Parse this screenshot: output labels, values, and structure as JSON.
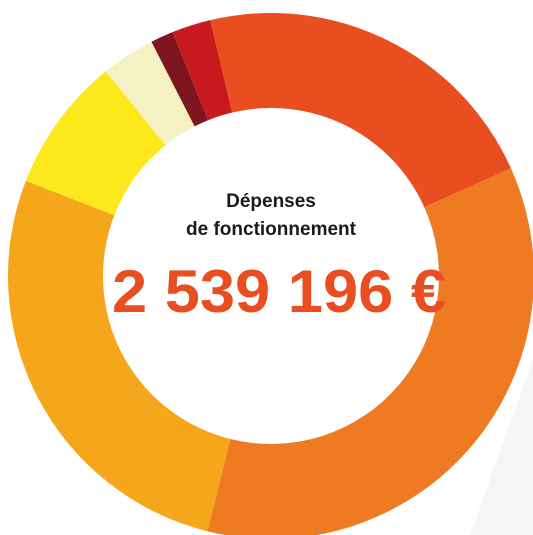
{
  "chart_data": {
    "type": "donut",
    "title_lines": [
      "Dépenses",
      "de fonctionnement"
    ],
    "center_text": "2 539 196 €",
    "categories": [
      null,
      null,
      null,
      null,
      null,
      null,
      null
    ],
    "values": [
      2.4,
      22,
      35.6,
      27,
      8.3,
      3.3,
      1.4
    ],
    "colors": [
      "#c8191e",
      "#e84e1f",
      "#ee7a21",
      "#f5a61b",
      "#fde81c",
      "#f6f1c3",
      "#7d1620"
    ]
  }
}
